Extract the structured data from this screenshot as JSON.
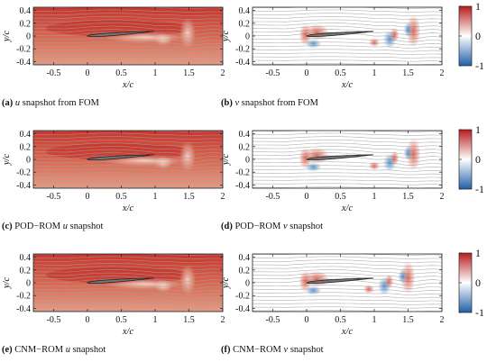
{
  "chart_data": [
    {
      "panel": "a",
      "type": "heatmap",
      "field": "u",
      "variant": "fom",
      "caption": {
        "tag": "(a)",
        "sym": "u",
        "text": " snapshot from FOM"
      },
      "xlabel": "x/c",
      "ylabel": "y/c",
      "xlim": [
        -0.8,
        2.0
      ],
      "ylim": [
        -0.45,
        0.45
      ],
      "xticks": [
        "-0.5",
        "0",
        "0.5",
        "1",
        "1.5",
        "2"
      ],
      "yticks": [
        "0.4",
        "0.2",
        "0",
        "-0.2",
        "-0.4"
      ]
    },
    {
      "panel": "b",
      "type": "heatmap",
      "field": "v",
      "variant": "fom",
      "caption": {
        "tag": "(b)",
        "sym": "v",
        "text": " snapshot from FOM"
      },
      "xlabel": "x/c",
      "ylabel": "y/c",
      "xlim": [
        -0.8,
        2.0
      ],
      "ylim": [
        -0.45,
        0.45
      ],
      "xticks": [
        "-0.5",
        "0",
        "0.5",
        "1",
        "1.5",
        "2"
      ],
      "yticks": [
        "0.4",
        "0.2",
        "0",
        "-0.2",
        "-0.4"
      ]
    },
    {
      "panel": "c",
      "type": "heatmap",
      "field": "u",
      "variant": "pod",
      "caption": {
        "tag": "(c)",
        "pre": "POD−ROM ",
        "sym": "u",
        "text": " snapshot"
      },
      "xlabel": "x/c",
      "ylabel": "y/c",
      "xlim": [
        -0.8,
        2.0
      ],
      "ylim": [
        -0.45,
        0.45
      ],
      "xticks": [
        "-0.5",
        "0",
        "0.5",
        "1",
        "1.5",
        "2"
      ],
      "yticks": [
        "0.4",
        "0.2",
        "0",
        "-0.2",
        "-0.4"
      ]
    },
    {
      "panel": "d",
      "type": "heatmap",
      "field": "v",
      "variant": "pod",
      "caption": {
        "tag": "(d)",
        "pre": "POD−ROM ",
        "sym": "v",
        "text": " snapshot"
      },
      "xlabel": "x/c",
      "ylabel": "y/c",
      "xlim": [
        -0.8,
        2.0
      ],
      "ylim": [
        -0.45,
        0.45
      ],
      "xticks": [
        "-0.5",
        "0",
        "0.5",
        "1",
        "1.5",
        "2"
      ],
      "yticks": [
        "0.4",
        "0.2",
        "0",
        "-0.2",
        "-0.4"
      ]
    },
    {
      "panel": "e",
      "type": "heatmap",
      "field": "u",
      "variant": "cnm",
      "caption": {
        "tag": "(e)",
        "pre": "CNM−ROM ",
        "sym": "u",
        "text": " snapshot"
      },
      "xlabel": "x/c",
      "ylabel": "y/c",
      "xlim": [
        -0.8,
        2.0
      ],
      "ylim": [
        -0.45,
        0.45
      ],
      "xticks": [
        "-0.5",
        "0",
        "0.5",
        "1",
        "1.5",
        "2"
      ],
      "yticks": [
        "0.4",
        "0.2",
        "0",
        "-0.2",
        "-0.4"
      ]
    },
    {
      "panel": "f",
      "type": "heatmap",
      "field": "v",
      "variant": "cnm",
      "caption": {
        "tag": "(f)",
        "pre": "CNM−ROM ",
        "sym": "v",
        "text": " snapshot"
      },
      "xlabel": "x/c",
      "ylabel": "y/c",
      "xlim": [
        -0.8,
        2.0
      ],
      "ylim": [
        -0.45,
        0.45
      ],
      "xticks": [
        "-0.5",
        "0",
        "0.5",
        "1",
        "1.5",
        "2"
      ],
      "yticks": [
        "0.4",
        "0.2",
        "0",
        "-0.2",
        "-0.4"
      ]
    }
  ],
  "colorbar": {
    "ticks": [
      "1",
      "0",
      "-1"
    ],
    "range": [
      -1,
      1
    ],
    "colors": [
      "#2b6cb0",
      "#ffffff",
      "#c62828"
    ]
  },
  "colors": {
    "u_high": "#cc3a2c",
    "u_mid": "#e6947a",
    "v_pos": "#d9533e",
    "v_neg": "#3f86c4",
    "airfoil": "#777777"
  }
}
